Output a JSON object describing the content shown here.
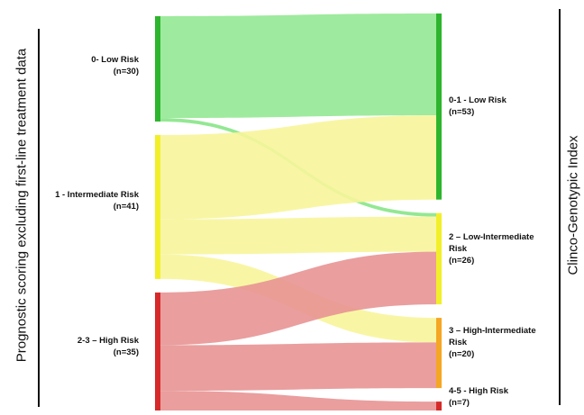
{
  "diagram": {
    "left_axis_title": "Prognostic scoring excluding first-line treatment data",
    "right_axis_title": "Clinco-Genotypic Index",
    "left_nodes": [
      {
        "key": "low",
        "line1": "0- Low Risk",
        "line2": "(n=30)",
        "color": "#2db52d"
      },
      {
        "key": "int",
        "line1": "1 - Intermediate Risk",
        "line2": "(n=41)",
        "color": "#f2ef2a"
      },
      {
        "key": "high",
        "line1": "2-3 – High Risk",
        "line2": "(n=35)",
        "color": "#d62a2a"
      }
    ],
    "right_nodes": [
      {
        "key": "r01",
        "line1": "0-1 - Low Risk",
        "line2": "(n=53)",
        "color": "#2db52d"
      },
      {
        "key": "r2",
        "line1": "2 – Low-Intermediate",
        "line2": "Risk",
        "line3": "(n=26)",
        "color": "#f2ef2a"
      },
      {
        "key": "r3",
        "line1": "3 – High-Intermediate",
        "line2": "Risk",
        "line3": "(n=20)",
        "color": "#f5a623"
      },
      {
        "key": "r45",
        "line1": "4-5 - High Risk",
        "line2": "(n=7)",
        "color": "#d62a2a"
      }
    ],
    "flows": [
      {
        "from": "low",
        "to": "r01",
        "value": 29,
        "color": "#93e893"
      },
      {
        "from": "low",
        "to": "r2",
        "value": 1,
        "color": "#93e893"
      },
      {
        "from": "int",
        "to": "r01",
        "value": 24,
        "color": "#f7f59a"
      },
      {
        "from": "int",
        "to": "r2",
        "value": 10,
        "color": "#f7f59a"
      },
      {
        "from": "int",
        "to": "r3",
        "value": 7,
        "color": "#f7f59a"
      },
      {
        "from": "high",
        "to": "r2",
        "value": 15,
        "color": "#e89393"
      },
      {
        "from": "high",
        "to": "r3",
        "value": 13,
        "color": "#e89393"
      },
      {
        "from": "high",
        "to": "r45",
        "value": 7,
        "color": "#e89393"
      }
    ]
  }
}
